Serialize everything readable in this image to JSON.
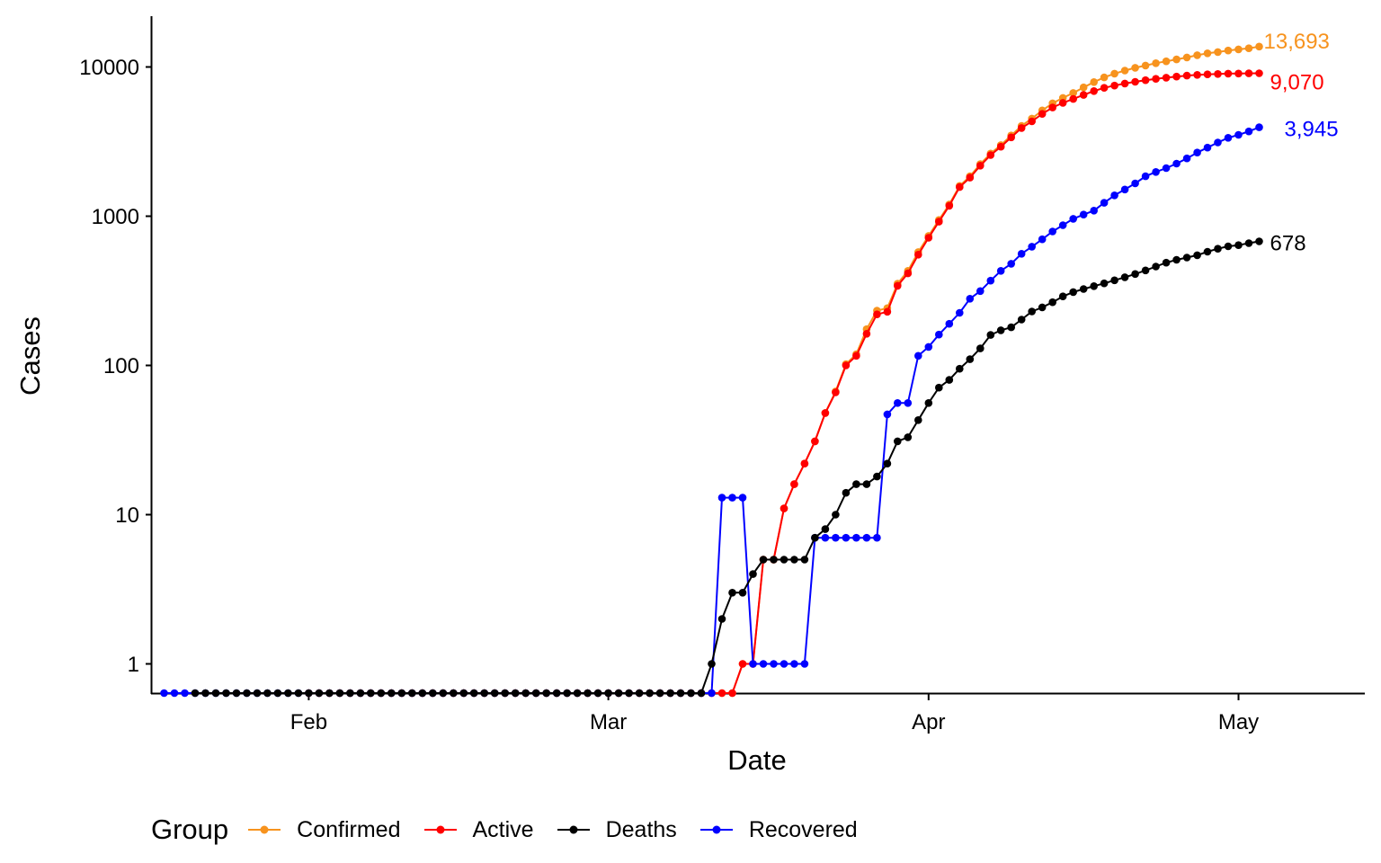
{
  "chart_data": {
    "type": "line",
    "xlabel": "Date",
    "ylabel": "Cases",
    "y_scale": "log10",
    "x_ticks": [
      "Feb",
      "Mar",
      "Apr",
      "May"
    ],
    "y_ticks": [
      "1",
      "10",
      "100",
      "1000",
      "10000"
    ],
    "x_range": [
      "2020-01-22",
      "2020-05-03"
    ],
    "zero_values_drawn_at_bottom": true,
    "grid": false,
    "legend": {
      "title": "Group",
      "position": "bottom"
    },
    "x_start_date": "2020-01-22",
    "series": [
      {
        "name": "Confirmed",
        "color": "#f7931e",
        "end_label": "13,693",
        "values": [
          0,
          0,
          0,
          0,
          0,
          0,
          0,
          0,
          0,
          0,
          0,
          0,
          0,
          0,
          0,
          0,
          0,
          0,
          0,
          0,
          0,
          0,
          0,
          0,
          0,
          0,
          0,
          0,
          0,
          0,
          0,
          0,
          0,
          0,
          0,
          0,
          0,
          0,
          0,
          0,
          0,
          0,
          1,
          1,
          5,
          5,
          11,
          16,
          22,
          31,
          48,
          67,
          102,
          119,
          175,
          233,
          242,
          353,
          430,
          575,
          738,
          944,
          1200,
          1597,
          1851,
          2236,
          2628,
          2997,
          3474,
          4032,
          4511,
          5116,
          5711,
          6204,
          6699,
          7299,
          7917,
          8514,
          9025,
          9462,
          9880,
          10231,
          10599,
          10912,
          11242,
          11586,
          11993,
          12341,
          12595,
          12882,
          13132,
          13353,
          13693
        ]
      },
      {
        "name": "Active",
        "color": "#ff0000",
        "end_label": "9,070",
        "values": [
          0,
          0,
          0,
          0,
          0,
          0,
          0,
          0,
          0,
          0,
          0,
          0,
          0,
          0,
          0,
          0,
          0,
          0,
          0,
          0,
          0,
          0,
          0,
          0,
          0,
          0,
          0,
          0,
          0,
          0,
          0,
          0,
          0,
          0,
          0,
          0,
          0,
          0,
          0,
          0,
          0,
          0,
          1,
          1,
          5,
          5,
          11,
          16,
          22,
          31,
          48,
          66,
          100,
          116,
          163,
          220,
          229,
          342,
          414,
          552,
          717,
          919,
          1174,
          1567,
          1813,
          2180,
          2569,
          2920,
          3377,
          3900,
          4320,
          4850,
          5350,
          5750,
          6100,
          6500,
          6900,
          7250,
          7500,
          7750,
          7950,
          8150,
          8330,
          8480,
          8620,
          8750,
          8850,
          8920,
          8980,
          9020,
          9040,
          9060,
          9070
        ]
      },
      {
        "name": "Deaths",
        "color": "#000000",
        "end_label": "678",
        "values": [
          0,
          0,
          0,
          0,
          0,
          0,
          0,
          0,
          0,
          0,
          0,
          0,
          0,
          0,
          0,
          0,
          0,
          0,
          0,
          0,
          0,
          0,
          0,
          0,
          0,
          0,
          0,
          0,
          0,
          0,
          0,
          0,
          0,
          0,
          0,
          0,
          0,
          0,
          0,
          0,
          0,
          0,
          0,
          0,
          0,
          0,
          0,
          0,
          0,
          0,
          1,
          2,
          3,
          3,
          4,
          5,
          5,
          5,
          5,
          5,
          7,
          8,
          10,
          14,
          16,
          16,
          18,
          22,
          31,
          33,
          43,
          56,
          71,
          80,
          95,
          110,
          130,
          160,
          172,
          180,
          203,
          230,
          245,
          265,
          290,
          310,
          325,
          340,
          355,
          372,
          390,
          410,
          433,
          460,
          488,
          510,
          528,
          548,
          578,
          605,
          628,
          640,
          660,
          678
        ]
      },
      {
        "name": "Recovered",
        "color": "#0000ff",
        "end_label": "3,945",
        "values": [
          0,
          0,
          0,
          0,
          0,
          0,
          0,
          0,
          0,
          0,
          0,
          0,
          0,
          0,
          0,
          0,
          0,
          0,
          0,
          0,
          0,
          0,
          0,
          0,
          0,
          0,
          0,
          0,
          0,
          0,
          0,
          0,
          0,
          0,
          0,
          0,
          0,
          0,
          0,
          0,
          0,
          0,
          0,
          0,
          0,
          0,
          0,
          0,
          0,
          0,
          0,
          0,
          0,
          0,
          13,
          13,
          13,
          1,
          1,
          1,
          1,
          1,
          1,
          7,
          7,
          7,
          7,
          7,
          7,
          7,
          47,
          56,
          56,
          116,
          133,
          161,
          190,
          225,
          280,
          315,
          370,
          430,
          480,
          560,
          625,
          700,
          790,
          870,
          960,
          1025,
          1090,
          1230,
          1380,
          1510,
          1660,
          1850,
          1980,
          2100,
          2250,
          2440,
          2670,
          2880,
          3120,
          3350,
          3510,
          3700,
          3945
        ]
      }
    ]
  }
}
